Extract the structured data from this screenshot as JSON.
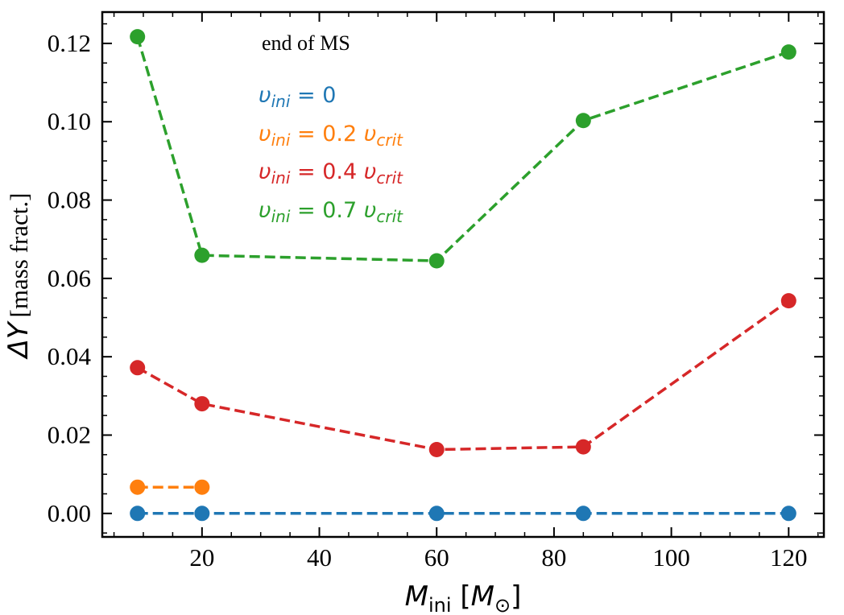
{
  "chart_data": {
    "type": "line",
    "title": "",
    "annotation": "end of MS",
    "xlabel": {
      "symbol": "M",
      "subscript": "ini",
      "unit": "M",
      "unit_subscript": "⊙"
    },
    "ylabel": {
      "symbol": "ΔY",
      "unit": "[mass fract.]"
    },
    "xlim": [
      3,
      126
    ],
    "ylim": [
      -0.006,
      0.128
    ],
    "xticks": [
      20,
      40,
      60,
      80,
      100,
      120
    ],
    "xtick_labels": [
      "20",
      "40",
      "60",
      "80",
      "100",
      "120"
    ],
    "yticks": [
      0.0,
      0.02,
      0.04,
      0.06,
      0.08,
      0.1,
      0.12
    ],
    "ytick_labels": [
      "0.00",
      "0.02",
      "0.04",
      "0.06",
      "0.08",
      "0.10",
      "0.12"
    ],
    "grid": false,
    "series": [
      {
        "name": "v_ini = 0",
        "color": "#1f77b4",
        "x": [
          9,
          20,
          60,
          85,
          120
        ],
        "y": [
          0.0,
          0.0,
          0.0,
          0.0,
          0.0
        ],
        "legend": {
          "pre": "= 0",
          "post": ""
        }
      },
      {
        "name": "v_ini = 0.2 v_crit",
        "color": "#ff7f0e",
        "x": [
          9,
          20
        ],
        "y": [
          0.0067,
          0.0067
        ],
        "legend": {
          "pre": "= 0.2",
          "post": "crit"
        }
      },
      {
        "name": "v_ini = 0.4 v_crit",
        "color": "#d62728",
        "x": [
          9,
          20,
          60,
          85,
          120
        ],
        "y": [
          0.0372,
          0.028,
          0.0163,
          0.017,
          0.0543
        ],
        "legend": {
          "pre": "= 0.4",
          "post": "crit"
        }
      },
      {
        "name": "v_ini = 0.7 v_crit",
        "color": "#2ca02c",
        "x": [
          9,
          20,
          60,
          85,
          120
        ],
        "y": [
          0.1217,
          0.0659,
          0.0645,
          0.1003,
          0.1178
        ],
        "legend": {
          "pre": "= 0.7",
          "post": "crit"
        }
      }
    ],
    "legend_symbol": "υ",
    "legend_subscript": "ini",
    "legend_placement": "upper-left, text-only"
  }
}
